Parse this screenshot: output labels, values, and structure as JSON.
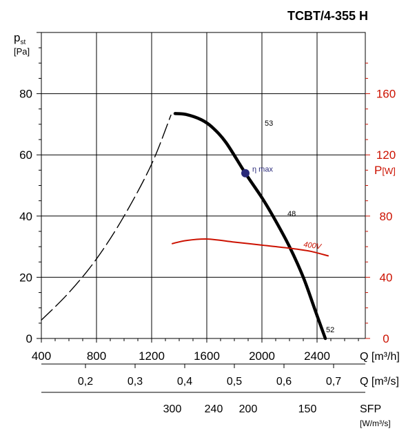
{
  "chart_data": {
    "type": "line",
    "title": "TCBT/4-355 H",
    "y_left_label": {
      "main": "p",
      "sub": "st",
      "unit": "[Pa]"
    },
    "y_right_label": {
      "main": "P",
      "unit": "[W]"
    },
    "y_left_range": [
      0,
      100
    ],
    "y_left_ticks": [
      "0",
      "20",
      "40",
      "60",
      "80"
    ],
    "y_right_range": [
      0,
      200
    ],
    "y_right_ticks": [
      "0",
      "40",
      "80",
      "120",
      "160"
    ],
    "x_range": [
      400,
      2750
    ],
    "x_ticks": [
      "400",
      "800",
      "1200",
      "1600",
      "2000",
      "2400"
    ],
    "x_unit": "Q [m³/h]",
    "x2_ticks": [
      "0,2",
      "0,3",
      "0,4",
      "0,5",
      "0,6",
      "0,7"
    ],
    "x2_unit": "Q [m³/s]",
    "sfp_ticks": [
      "300",
      "240",
      "200",
      "150"
    ],
    "sfp_label": "SFP",
    "sfp_unit": "[W/m³/s]",
    "grid": true,
    "series": [
      {
        "role": "pressure-unstable",
        "style": "dashed",
        "axis": "left",
        "points": [
          [
            400,
            6
          ],
          [
            600,
            15
          ],
          [
            800,
            26
          ],
          [
            1000,
            40
          ],
          [
            1200,
            57
          ],
          [
            1340,
            73
          ]
        ]
      },
      {
        "role": "pressure-stable",
        "style": "solid-thick",
        "axis": "left",
        "points": [
          [
            1370,
            73.5
          ],
          [
            1450,
            73.2
          ],
          [
            1560,
            71.5
          ],
          [
            1640,
            69
          ],
          [
            1740,
            64
          ],
          [
            1880,
            54
          ],
          [
            2000,
            46
          ],
          [
            2080,
            40
          ],
          [
            2200,
            30
          ],
          [
            2300,
            20
          ],
          [
            2380,
            10
          ],
          [
            2460,
            0
          ]
        ]
      },
      {
        "role": "power",
        "name": "400V",
        "style": "solid-red",
        "axis": "right",
        "points": [
          [
            1350,
            62
          ],
          [
            1450,
            64
          ],
          [
            1600,
            65
          ],
          [
            1800,
            63
          ],
          [
            2000,
            61
          ],
          [
            2200,
            59
          ],
          [
            2350,
            57
          ],
          [
            2480,
            54
          ]
        ]
      }
    ],
    "annotations": [
      {
        "text": "53",
        "x": 2020,
        "y": 69.5
      },
      {
        "text": "48",
        "x": 2185,
        "y": 40
      },
      {
        "text": "52",
        "x": 2465,
        "y": 2
      },
      {
        "text": "η max",
        "x": 1880,
        "y": 54.5
      }
    ],
    "eta_max_point": {
      "x": 1880,
      "y": 54
    },
    "colors": {
      "grid": "#000000",
      "curve": "#000000",
      "power": "#cc1100",
      "right_axis": "#cc1100",
      "eta_point": "#2a2a7a",
      "eta_text": "#2a2a7a"
    }
  }
}
